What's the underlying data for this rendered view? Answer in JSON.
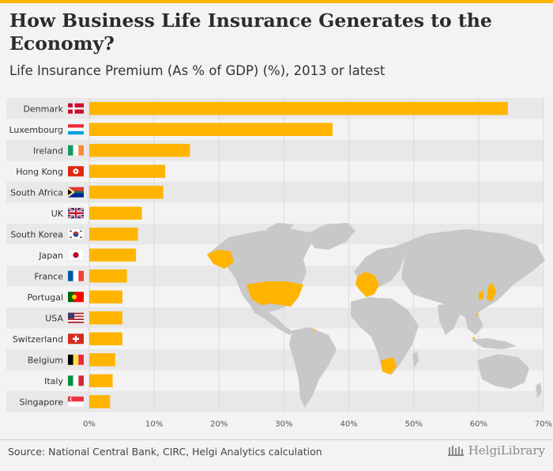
{
  "header": {
    "title": "How Business Life Insurance Generates to the Economy?",
    "subtitle": "Life Insurance Premium (As % of GDP) (%), 2013 or latest"
  },
  "footer": {
    "source": "Source: National Central Bank, CIRC, Helgi Analytics calculation",
    "brand": "HelgiLibrary"
  },
  "colors": {
    "bar": "#ffb400",
    "highlight_country": "#ffb400",
    "map_land": "#c8c8c8",
    "row_band": "#e8e8e8"
  },
  "chart_data": {
    "type": "bar",
    "orientation": "horizontal",
    "title": "How Business Life Insurance Generates to the Economy?",
    "subtitle": "Life Insurance Premium (As % of GDP) (%), 2013 or latest",
    "categories": [
      "Denmark",
      "Luxembourg",
      "Ireland",
      "Hong Kong",
      "South Africa",
      "UK",
      "South Korea",
      "Japan",
      "France",
      "Portugal",
      "USA",
      "Switzerland",
      "Belgium",
      "Italy",
      "Singapore"
    ],
    "values": [
      64.5,
      37.5,
      15.5,
      11.7,
      11.4,
      8.1,
      7.5,
      7.2,
      5.8,
      5.1,
      5.1,
      5.1,
      4.0,
      3.6,
      3.2
    ],
    "flags": [
      "denmark-flag",
      "luxembourg-flag",
      "ireland-flag",
      "hong-kong-flag",
      "south-africa-flag",
      "uk-flag",
      "south-korea-flag",
      "japan-flag",
      "france-flag",
      "portugal-flag",
      "usa-flag",
      "switzerland-flag",
      "belgium-flag",
      "italy-flag",
      "singapore-flag"
    ],
    "xlim": [
      0,
      70
    ],
    "xticks": [
      0,
      10,
      20,
      30,
      40,
      50,
      60,
      70
    ],
    "xtick_labels": [
      "0%",
      "10%",
      "20%",
      "30%",
      "40%",
      "50%",
      "60%",
      "70%"
    ],
    "xlabel": "",
    "ylabel": "",
    "grid": true,
    "legend": "none"
  }
}
